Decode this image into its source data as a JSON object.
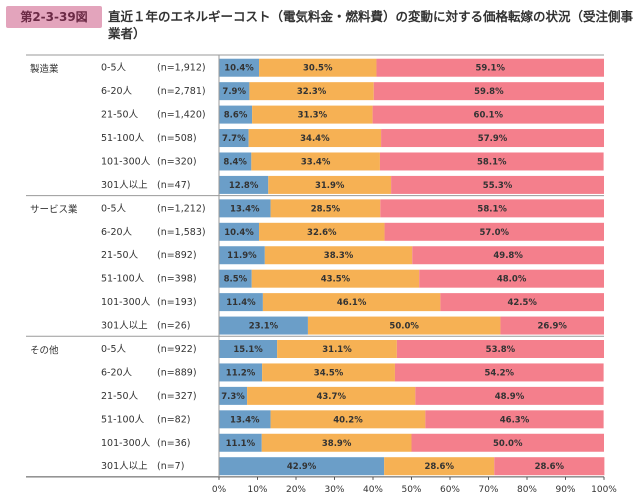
{
  "figure": {
    "badge": "第2-3-39図",
    "title": "直近１年のエネルギーコスト（電気料金・燃料費）の変動に対する価格転嫁の状況（受注側事業者）"
  },
  "chart_data": {
    "type": "bar",
    "orientation": "horizontal-stacked-100",
    "series_names": [
      "series-1",
      "series-2",
      "series-3"
    ],
    "colors": [
      "#6b9ec8",
      "#f6b154",
      "#f47f8c"
    ],
    "xlim": [
      0,
      100
    ],
    "ticks": [
      "0%",
      "10%",
      "20%",
      "30%",
      "40%",
      "50%",
      "60%",
      "70%",
      "80%",
      "90%",
      "100%"
    ],
    "groups": [
      {
        "name": "製造業",
        "rows": [
          {
            "size": "0-5人",
            "n": "(n=1,912)",
            "values": [
              10.4,
              30.5,
              59.1
            ],
            "labels": [
              "10.4%",
              "30.5%",
              "59.1%"
            ]
          },
          {
            "size": "6-20人",
            "n": "(n=2,781)",
            "values": [
              7.9,
              32.3,
              59.8
            ],
            "labels": [
              "7.9%",
              "32.3%",
              "59.8%"
            ]
          },
          {
            "size": "21-50人",
            "n": "(n=1,420)",
            "values": [
              8.6,
              31.3,
              60.1
            ],
            "labels": [
              "8.6%",
              "31.3%",
              "60.1%"
            ]
          },
          {
            "size": "51-100人",
            "n": "(n=508)",
            "values": [
              7.7,
              34.4,
              57.9
            ],
            "labels": [
              "7.7%",
              "34.4%",
              "57.9%"
            ]
          },
          {
            "size": "101-300人",
            "n": "(n=320)",
            "values": [
              8.4,
              33.4,
              58.1
            ],
            "labels": [
              "8.4%",
              "33.4%",
              "58.1%"
            ]
          },
          {
            "size": "301人以上",
            "n": "(n=47)",
            "values": [
              12.8,
              31.9,
              55.3
            ],
            "labels": [
              "12.8%",
              "31.9%",
              "55.3%"
            ]
          }
        ]
      },
      {
        "name": "サービス業",
        "rows": [
          {
            "size": "0-5人",
            "n": "(n=1,212)",
            "values": [
              13.4,
              28.5,
              58.1
            ],
            "labels": [
              "13.4%",
              "28.5%",
              "58.1%"
            ]
          },
          {
            "size": "6-20人",
            "n": "(n=1,583)",
            "values": [
              10.4,
              32.6,
              57.0
            ],
            "labels": [
              "10.4%",
              "32.6%",
              "57.0%"
            ]
          },
          {
            "size": "21-50人",
            "n": "(n=892)",
            "values": [
              11.9,
              38.3,
              49.8
            ],
            "labels": [
              "11.9%",
              "38.3%",
              "49.8%"
            ]
          },
          {
            "size": "51-100人",
            "n": "(n=398)",
            "values": [
              8.5,
              43.5,
              48.0
            ],
            "labels": [
              "8.5%",
              "43.5%",
              "48.0%"
            ]
          },
          {
            "size": "101-300人",
            "n": "(n=193)",
            "values": [
              11.4,
              46.1,
              42.5
            ],
            "labels": [
              "11.4%",
              "46.1%",
              "42.5%"
            ]
          },
          {
            "size": "301人以上",
            "n": "(n=26)",
            "values": [
              23.1,
              50.0,
              26.9
            ],
            "labels": [
              "23.1%",
              "50.0%",
              "26.9%"
            ]
          }
        ]
      },
      {
        "name": "その他",
        "rows": [
          {
            "size": "0-5人",
            "n": "(n=922)",
            "values": [
              15.1,
              31.1,
              53.8
            ],
            "labels": [
              "15.1%",
              "31.1%",
              "53.8%"
            ]
          },
          {
            "size": "6-20人",
            "n": "(n=889)",
            "values": [
              11.2,
              34.5,
              54.2
            ],
            "labels": [
              "11.2%",
              "34.5%",
              "54.2%"
            ]
          },
          {
            "size": "21-50人",
            "n": "(n=327)",
            "values": [
              7.3,
              43.7,
              48.9
            ],
            "labels": [
              "7.3%",
              "43.7%",
              "48.9%"
            ]
          },
          {
            "size": "51-100人",
            "n": "(n=82)",
            "values": [
              13.4,
              40.2,
              46.3
            ],
            "labels": [
              "13.4%",
              "40.2%",
              "46.3%"
            ]
          },
          {
            "size": "101-300人",
            "n": "(n=36)",
            "values": [
              11.1,
              38.9,
              50.0
            ],
            "labels": [
              "11.1%",
              "38.9%",
              "50.0%"
            ]
          },
          {
            "size": "301人以上",
            "n": "(n=7)",
            "values": [
              42.9,
              28.6,
              28.6
            ],
            "labels": [
              "42.9%",
              "28.6%",
              "28.6%"
            ]
          }
        ]
      }
    ]
  }
}
